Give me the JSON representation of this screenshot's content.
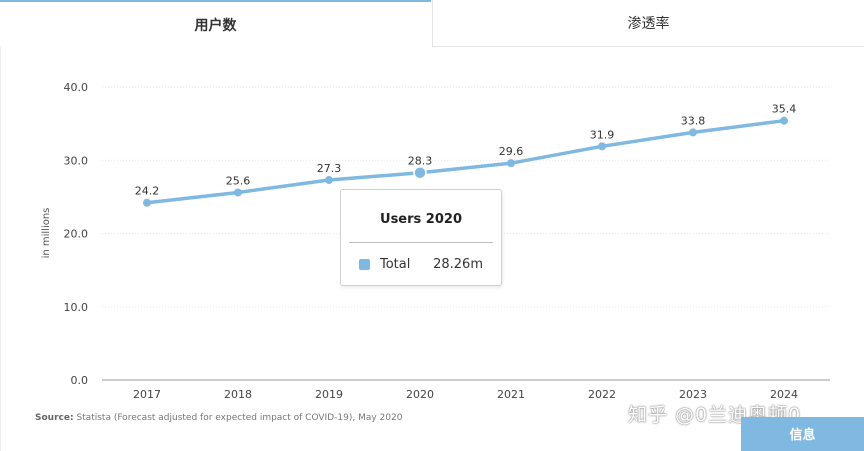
{
  "tabs": {
    "active": "用户数",
    "inactive": "渗透率"
  },
  "chart_data": {
    "type": "line",
    "x": [
      "2017",
      "2018",
      "2019",
      "2020",
      "2021",
      "2022",
      "2023",
      "2024"
    ],
    "series": [
      {
        "name": "Total",
        "values": [
          24.2,
          25.6,
          27.3,
          28.3,
          29.6,
          31.9,
          33.8,
          35.4
        ]
      }
    ],
    "data_labels": [
      "24.2",
      "25.6",
      "27.3",
      "28.3",
      "29.6",
      "31.9",
      "33.8",
      "35.4"
    ],
    "ylabel": "in millions",
    "ylim": [
      0,
      40
    ],
    "yticks": [
      "0.0",
      "10.0",
      "20.0",
      "30.0",
      "40.0"
    ],
    "grid": true,
    "highlighted_index": 3,
    "color": "#7fb8e0"
  },
  "tooltip": {
    "title": "Users 2020",
    "label": "Total",
    "value": "28.26m"
  },
  "source": {
    "prefix": "Source:",
    "text": "Statista (Forecast adjusted for expected impact of COVID-19), May 2020"
  },
  "watermark": "知乎 @0兰迪奥顿0",
  "info_button": "信息"
}
